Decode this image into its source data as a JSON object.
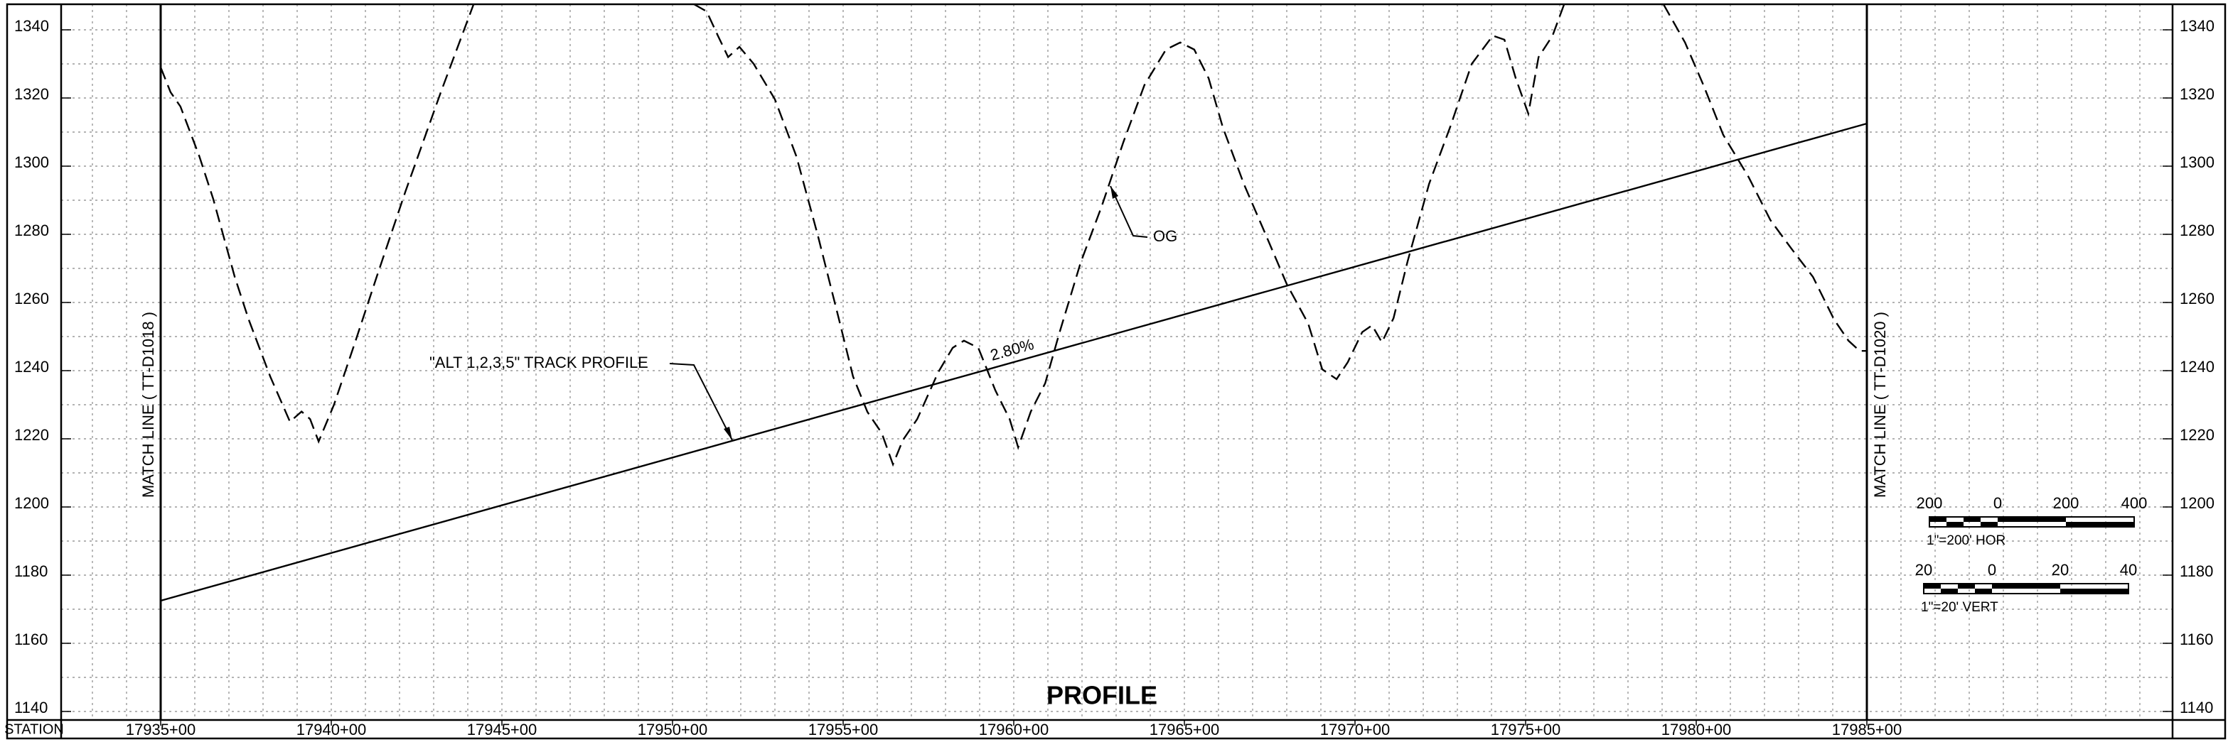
{
  "chart_data": {
    "type": "line",
    "title": "PROFILE",
    "x_axis_label": "STATION",
    "match_lines": [
      "MATCH LINE ( TT-D1018 )",
      "MATCH LINE ( TT-D1020 )"
    ],
    "grade_label": "2.80%",
    "xlim": [
      17930.5,
      17995.5
    ],
    "ylim": [
      1137.5,
      1347.5
    ],
    "xticks": [
      {
        "value": 17935,
        "label": "17935+00"
      },
      {
        "value": 17940,
        "label": "17940+00"
      },
      {
        "value": 17945,
        "label": "17945+00"
      },
      {
        "value": 17950,
        "label": "17950+00"
      },
      {
        "value": 17955,
        "label": "17955+00"
      },
      {
        "value": 17960,
        "label": "17960+00"
      },
      {
        "value": 17965,
        "label": "17965+00"
      },
      {
        "value": 17970,
        "label": "17970+00"
      },
      {
        "value": 17975,
        "label": "17975+00"
      },
      {
        "value": 17980,
        "label": "17980+00"
      },
      {
        "value": 17985,
        "label": "17985+00"
      }
    ],
    "yticks": [
      1140,
      1160,
      1180,
      1200,
      1220,
      1240,
      1260,
      1280,
      1300,
      1320,
      1340
    ],
    "grid": true,
    "grid_step": {
      "x": 1,
      "y": 10
    },
    "series": [
      {
        "name": "OG",
        "color": "#000000",
        "dashed": true,
        "x": [
          17935,
          17935.29,
          17935.58,
          17936.13,
          17936.54,
          17937.17,
          17937.58,
          17938.21,
          17938.79,
          17939.13,
          17939.38,
          17939.63,
          17940.08,
          17940.71,
          17941.33,
          17942.17,
          17943.21,
          17944.17,
          17947,
          17950.63,
          17951,
          17951.33,
          17951.63,
          17951.96,
          17952.38,
          17953,
          17953.63,
          17954.25,
          17954.88,
          17955.29,
          17955.71,
          17956.13,
          17956.46,
          17956.75,
          17957.17,
          17957.79,
          17958.21,
          17958.54,
          17958.96,
          17959.46,
          17959.88,
          17960.13,
          17960.5,
          17960.92,
          17961.33,
          17961.96,
          17962.58,
          17963.21,
          17963.83,
          17964.46,
          17964.88,
          17965.29,
          17965.71,
          17966.13,
          17966.75,
          17967.38,
          17968,
          17968.63,
          17969.04,
          17969.46,
          17969.79,
          17970.21,
          17970.5,
          17970.79,
          17971.13,
          17971.54,
          17972.17,
          17972.79,
          17973.42,
          17974.04,
          17974.38,
          17974.71,
          17975.08,
          17975.38,
          17975.79,
          17976.13,
          17978,
          17979.04,
          17979.67,
          17980.21,
          17980.79,
          17981.54,
          17982.17,
          17982.79,
          17983.42,
          17984.04,
          17984.46,
          17984.79,
          17985
        ],
        "values": [
          1329,
          1321.7,
          1317.5,
          1303,
          1290.4,
          1267.5,
          1255,
          1238.3,
          1225,
          1228,
          1225.8,
          1219.2,
          1230,
          1248.7,
          1267.5,
          1292.5,
          1321.7,
          1347.5,
          null,
          1347.5,
          1345.4,
          1338.3,
          1332,
          1335,
          1330,
          1319.6,
          1302.9,
          1280,
          1255,
          1238.3,
          1227.9,
          1221.7,
          1212.5,
          1219.6,
          1225.8,
          1239.6,
          1246.7,
          1248.8,
          1246.7,
          1234.2,
          1225.8,
          1217.5,
          1228,
          1236.3,
          1250.8,
          1271.7,
          1288.3,
          1307,
          1323.8,
          1334.2,
          1336.3,
          1334.2,
          1325.8,
          1311.3,
          1294.6,
          1280,
          1265.4,
          1253.8,
          1240.4,
          1237.5,
          1242.5,
          1251.3,
          1253.3,
          1248.3,
          1255.4,
          1272,
          1294.8,
          1311.5,
          1330,
          1338.3,
          1337.1,
          1325.8,
          1315.4,
          1332,
          1338.3,
          1347.5,
          null,
          1347.5,
          1336.3,
          1323.8,
          1309.2,
          1296.7,
          1284.2,
          1275.8,
          1267.5,
          1255,
          1248.8,
          1245.8,
          1245.8
        ]
      },
      {
        "name": "\"ALT 1,2,3,5\" TRACK PROFILE",
        "color": "#000000",
        "dashed": false,
        "x": [
          17935,
          17985
        ],
        "values": [
          1172.5,
          1312.5
        ]
      }
    ],
    "scales": [
      {
        "ticks": [
          "200",
          "0",
          "200",
          "400"
        ],
        "label": "1\"=200' HOR"
      },
      {
        "ticks": [
          "20",
          "0",
          "20",
          "40"
        ],
        "label": "1\"=20' VERT"
      }
    ]
  }
}
